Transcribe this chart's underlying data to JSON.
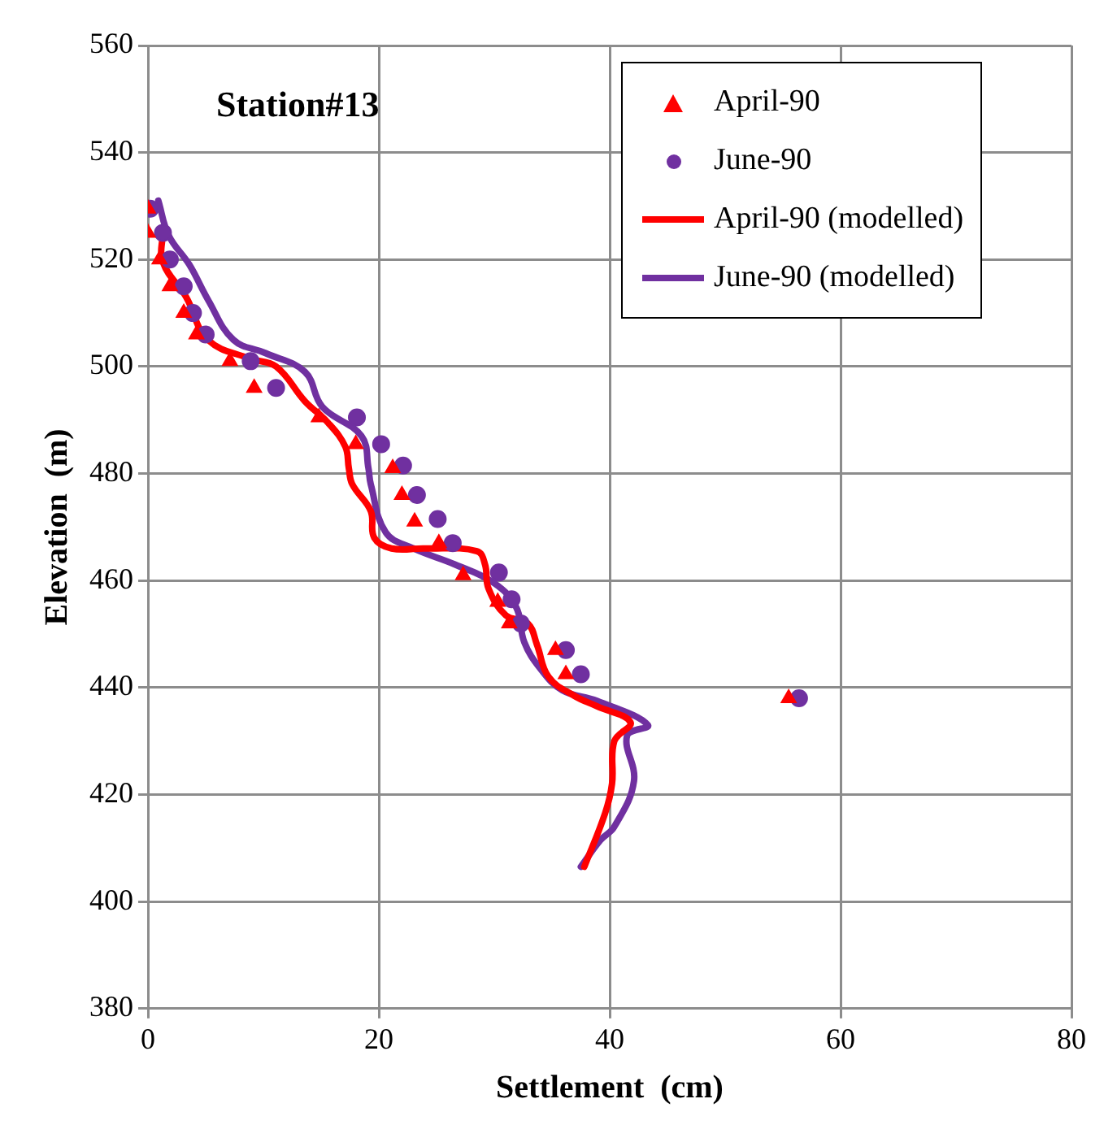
{
  "chart_data": {
    "type": "scatter",
    "xlabel": "Settlement  (cm)",
    "ylabel": "Elevation  (m)",
    "annotations": [
      "Station#13"
    ],
    "xlim": [
      0,
      80
    ],
    "xticks": [
      0,
      20,
      40,
      60,
      80
    ],
    "ylim": [
      380,
      560
    ],
    "yticks": [
      380,
      400,
      420,
      440,
      460,
      480,
      500,
      520,
      540,
      560
    ],
    "grid": true,
    "legend": "top right",
    "series": [
      {
        "name": "April-90",
        "marker": "triangle",
        "color": "#ff0000",
        "x": [
          0,
          0,
          1.0,
          1.9,
          3.1,
          4.2,
          7.1,
          9.2,
          14.8,
          18.0,
          21.2,
          22.0,
          23.1,
          25.2,
          27.3,
          30.3,
          31.3,
          35.3,
          36.2,
          55.5
        ],
        "values": [
          529.5,
          525,
          520,
          515,
          510,
          506,
          501,
          496,
          490.5,
          485.5,
          481,
          476,
          471,
          467,
          461,
          456,
          452,
          447,
          442.5,
          438
        ]
      },
      {
        "name": "June-90",
        "marker": "circle",
        "color": "#7030a0",
        "x": [
          0.2,
          1.3,
          1.9,
          3.1,
          3.9,
          5.0,
          8.9,
          11.1,
          18.1,
          20.2,
          22.1,
          23.3,
          25.1,
          26.4,
          30.4,
          31.5,
          32.3,
          36.2,
          37.5,
          56.4
        ],
        "values": [
          529.5,
          525,
          520,
          515,
          510,
          506,
          501,
          496,
          490.5,
          485.5,
          481.5,
          476,
          471.5,
          467,
          461.5,
          456.5,
          452,
          447,
          442.5,
          438
        ]
      },
      {
        "name": "April-90 (modelled)",
        "type": "line",
        "marker": "none",
        "color": "#ff0000",
        "x": [
          1.3,
          1.3,
          3.3,
          5.2,
          8.8,
          11.1,
          13.6,
          15.6,
          17.1,
          17.4,
          17.7,
          19.3,
          19.6,
          21.1,
          24.0,
          28.5,
          29.2,
          29.5,
          31.0,
          32.9,
          33.7,
          34.7,
          36.9,
          38.9,
          41.8,
          40.4,
          40.2,
          39.6,
          37.8
        ],
        "values": [
          525.5,
          519.5,
          513,
          505,
          501.5,
          500,
          493.5,
          489.5,
          485,
          481,
          478,
          473,
          468,
          466,
          466,
          465.5,
          463,
          458.5,
          453.5,
          452,
          448,
          442,
          438.5,
          436.5,
          433.5,
          430,
          422,
          416.5,
          406.5
        ]
      },
      {
        "name": "June-90 (modelled)",
        "type": "line",
        "marker": "none",
        "color": "#7030a0",
        "x": [
          0.9,
          1.8,
          3.6,
          5.2,
          7.4,
          10.2,
          13.6,
          15.1,
          18.5,
          19.1,
          19.3,
          20.6,
          23.0,
          26.6,
          30.0,
          31.9,
          32.6,
          34.0,
          35.9,
          38.9,
          43.3,
          41.5,
          42.1,
          40.4,
          39.2,
          37.5
        ],
        "values": [
          531,
          524.5,
          519,
          512.5,
          505,
          502.5,
          499,
          492.5,
          487,
          481,
          478,
          469,
          466,
          463,
          459.5,
          455,
          448.5,
          443.5,
          439.5,
          437.5,
          433,
          431,
          422.5,
          414,
          411.5,
          406.5
        ]
      }
    ]
  }
}
